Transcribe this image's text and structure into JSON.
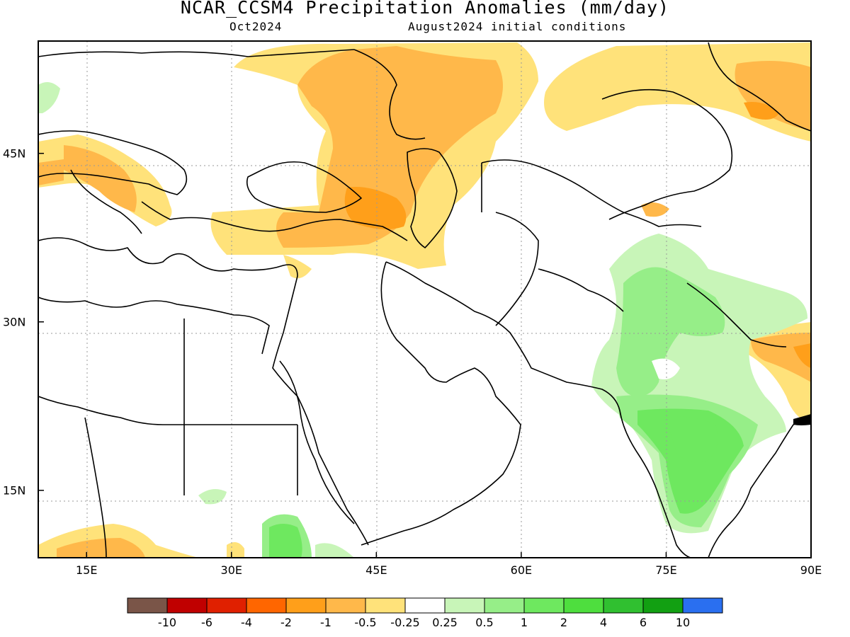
{
  "title": "NCAR_CCSM4 Precipitation Anomalies (mm/day)",
  "subtitle_left": "Oct2024",
  "subtitle_right": "August2024 initial conditions",
  "map": {
    "projection": "lat-lon",
    "lon_range": [
      10,
      90
    ],
    "lat_range": [
      9,
      55
    ],
    "lon_ticks": [
      "15E",
      "30E",
      "45E",
      "60E",
      "75E",
      "90E"
    ],
    "lon_tick_values": [
      15,
      30,
      45,
      60,
      75,
      90
    ],
    "lat_ticks": [
      "45N",
      "30N",
      "15N"
    ],
    "lat_tick_values": [
      45,
      30,
      15
    ],
    "grid": "dotted"
  },
  "colorbar": {
    "labels": [
      "-10",
      "-6",
      "-4",
      "-2",
      "-1",
      "-0.5",
      "-0.25",
      "0.25",
      "0.5",
      "1",
      "2",
      "4",
      "6",
      "10"
    ],
    "colors": [
      "#7a5548",
      "#c00000",
      "#e02000",
      "#ff6600",
      "#ff9f1a",
      "#ffb84a",
      "#ffe27a",
      "#ffffff",
      "#c8f5b8",
      "#96ee88",
      "#6ee85f",
      "#4ede3e",
      "#30c030",
      "#12a012",
      "#2a6ff0"
    ]
  }
}
